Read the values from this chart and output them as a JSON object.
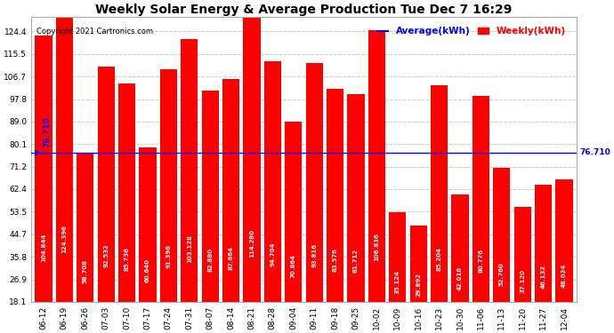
{
  "title": "Weekly Solar Energy & Average Production Tue Dec 7 16:29",
  "copyright": "Copyright 2021 Cartronics.com",
  "legend_avg": "Average(kWh)",
  "legend_weekly": "Weekly(kWh)",
  "average_value": 76.71,
  "categories": [
    "06-12",
    "06-19",
    "06-26",
    "07-03",
    "07-10",
    "07-17",
    "07-24",
    "07-31",
    "08-07",
    "08-14",
    "08-21",
    "08-28",
    "09-04",
    "09-11",
    "09-18",
    "09-25",
    "10-02",
    "10-09",
    "10-16",
    "10-23",
    "10-30",
    "11-06",
    "11-13",
    "11-20",
    "11-27",
    "12-04"
  ],
  "values": [
    104.844,
    124.396,
    58.708,
    92.532,
    85.736,
    60.64,
    91.396,
    103.128,
    82.88,
    87.664,
    114.28,
    94.704,
    70.664,
    93.816,
    83.576,
    81.712,
    106.836,
    35.124,
    29.892,
    85.204,
    42.016,
    80.776,
    52.76,
    37.12,
    46.132,
    48.024
  ],
  "bar_color": "#ff0000",
  "avg_line_color": "#0000ff",
  "text_color_in_bar": "#ffffff",
  "background_color": "#ffffff",
  "grid_color": "#cccccc",
  "yticks": [
    18.1,
    26.9,
    35.8,
    44.7,
    53.5,
    62.4,
    71.2,
    80.1,
    89.0,
    97.8,
    106.7,
    115.5,
    124.4
  ],
  "ylim": [
    18.1,
    130.0
  ],
  "title_fontsize": 10,
  "bar_label_fontsize": 5.0,
  "tick_fontsize": 6.5,
  "avg_fontsize": 6.5,
  "copyright_fontsize": 6.0,
  "legend_fontsize": 7.5
}
